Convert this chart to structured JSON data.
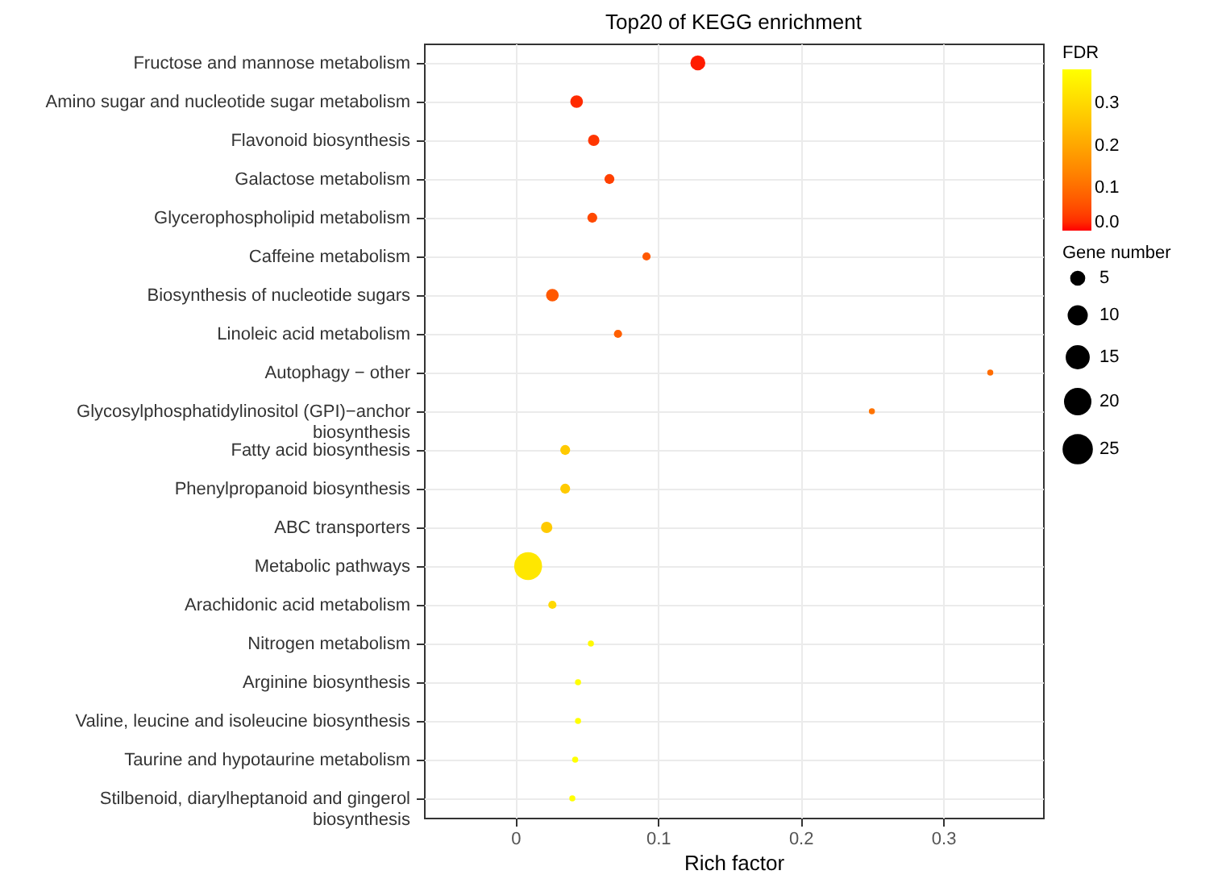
{
  "chart_data": {
    "type": "bubble",
    "title": "Top20 of KEGG enrichment",
    "xlabel": "Rich factor",
    "clabel": "FDR",
    "legend_title": "Gene number",
    "categories": [
      "Fructose and mannose metabolism",
      "Amino sugar and nucleotide sugar metabolism",
      "Flavonoid biosynthesis",
      "Galactose metabolism",
      "Glycerophospholipid metabolism",
      "Caffeine metabolism",
      "Biosynthesis of nucleotide sugars",
      "Linoleic acid metabolism",
      "Autophagy − other",
      "Glycosylphosphatidylinositol (GPI)−anchor biosynthesis",
      "Fatty acid biosynthesis",
      "Phenylpropanoid biosynthesis",
      "ABC transporters",
      "Metabolic pathways",
      "Arachidonic acid metabolism",
      "Nitrogen metabolism",
      "Arginine biosynthesis",
      "Valine, leucine and isoleucine biosynthesis",
      "Taurine and hypotaurine metabolism",
      "Stilbenoid, diarylheptanoid and gingerol biosynthesis"
    ],
    "values": [
      0.128,
      0.043,
      0.055,
      0.066,
      0.054,
      0.092,
      0.026,
      0.072,
      0.333,
      0.25,
      0.035,
      0.035,
      0.022,
      0.009,
      0.026,
      0.053,
      0.044,
      0.044,
      0.042,
      0.04
    ],
    "sizes": [
      7,
      5,
      4,
      3,
      3,
      2,
      5,
      2,
      1,
      1,
      3,
      3,
      4,
      25,
      2,
      1,
      1,
      1,
      1,
      1
    ],
    "size_legend": [
      5,
      10,
      15,
      20,
      25
    ],
    "cvalues": [
      0.01,
      0.02,
      0.03,
      0.04,
      0.05,
      0.07,
      0.07,
      0.08,
      0.1,
      0.11,
      0.27,
      0.27,
      0.27,
      0.33,
      0.3,
      0.37,
      0.38,
      0.38,
      0.38,
      0.38
    ],
    "clim": [
      0,
      0.38
    ],
    "cticks": [
      {
        "value": 0,
        "label": "0.0"
      },
      0.1,
      0.2,
      0.3
    ],
    "orientation": "horizontal",
    "xlim": [
      -0.064,
      0.37
    ],
    "xticks": [
      0,
      0.1,
      0.2,
      0.3
    ],
    "grid": true
  }
}
